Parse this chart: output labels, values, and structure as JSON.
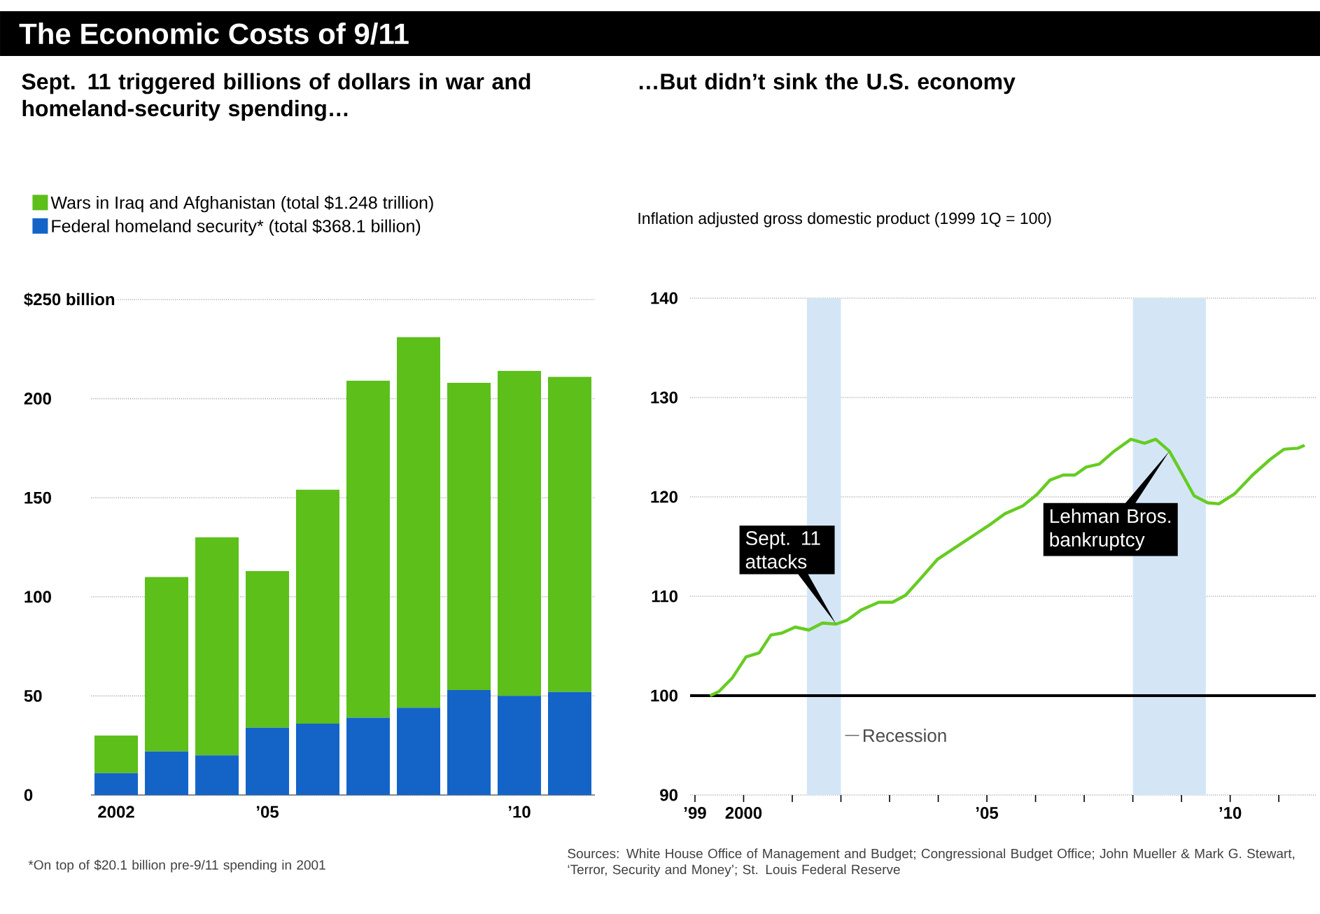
{
  "chart_data": [
    {
      "type": "bar",
      "title": "The Economic Costs of 9/11",
      "subtitle": "Sept. 11 triggered billions of dollars in war and homeland-security spending…",
      "categories": [
        "2002",
        null,
        null,
        "’05",
        null,
        null,
        null,
        null,
        "’10",
        null
      ],
      "stacked": true,
      "series": [
        {
          "name": "Federal homeland security* (total $368.1 billion)",
          "color": "#1464c8",
          "values": [
            11,
            22,
            20,
            34,
            36,
            39,
            44,
            53,
            50,
            52
          ]
        },
        {
          "name": "Wars in Iraq and Afghanistan (total $1.248 trillion)",
          "color": "#5cbf1a",
          "values": [
            19,
            88,
            110,
            79,
            118,
            170,
            187,
            155,
            164,
            159
          ]
        }
      ],
      "ylim": [
        0,
        250
      ],
      "yticks": [
        0,
        50,
        100,
        150,
        200,
        {
          "value": 250,
          "label": "$250 billion"
        }
      ],
      "grid": "y",
      "legend": "top left",
      "annotations": [
        "*On top of $20.1 billion pre-9/11 spending in 2001"
      ]
    },
    {
      "type": "line",
      "title": "…But didn’t sink the U.S. economy",
      "subtitle": "Inflation adjusted gross domestic product (1999 1Q = 100)",
      "series": [
        {
          "color": "#66cc22",
          "x": [
            1999.31,
            1999.49,
            1999.77,
            2000.05,
            2000.32,
            2000.56,
            2000.79,
            2001.06,
            2001.34,
            2001.62,
            2001.9,
            2002.13,
            2002.41,
            2002.78,
            2003.06,
            2003.33,
            2003.66,
            2003.98,
            2004.35,
            2004.72,
            2005.09,
            2005.37,
            2005.74,
            2006.02,
            2006.3,
            2006.57,
            2006.81,
            2007.04,
            2007.31,
            2007.59,
            2007.96,
            2008.24,
            2008.47,
            2008.75,
            2008.98,
            2009.26,
            2009.54,
            2009.77,
            2010.09,
            2010.46,
            2010.83,
            2011.11,
            2011.39,
            2011.53
          ],
          "values": [
            100,
            100.4,
            101.8,
            103.9,
            104.3,
            106.1,
            106.3,
            106.9,
            106.6,
            107.3,
            107.2,
            107.6,
            108.6,
            109.4,
            109.4,
            110.1,
            111.9,
            113.7,
            114.9,
            116.1,
            117.3,
            118.3,
            119.1,
            120.2,
            121.7,
            122.2,
            122.2,
            123.0,
            123.3,
            124.5,
            125.8,
            125.4,
            125.8,
            124.6,
            122.6,
            120.1,
            119.4,
            119.3,
            120.3,
            122.2,
            123.8,
            124.8,
            124.9,
            125.2
          ]
        }
      ],
      "xlim": [
        1998.9,
        2011.76
      ],
      "xticks": [
        {
          "value": 1999,
          "label": "’99"
        },
        2000,
        {
          "value": 2001,
          "label": null
        },
        {
          "value": 2002,
          "label": null
        },
        {
          "value": 2003,
          "label": null
        },
        {
          "value": 2004,
          "label": null
        },
        {
          "value": 2005,
          "label": "’05"
        },
        {
          "value": 2006,
          "label": null
        },
        {
          "value": 2007,
          "label": null
        },
        {
          "value": 2008,
          "label": null
        },
        {
          "value": 2009,
          "label": null
        },
        {
          "value": 2010,
          "label": "’10"
        },
        {
          "value": 2011,
          "label": null
        }
      ],
      "ylim": [
        90,
        140
      ],
      "yticks": [
        90,
        100,
        110,
        120,
        130,
        140
      ],
      "grid": "y",
      "ref_lines": [
        {
          "axis": "y",
          "value": 100,
          "color": "#000000"
        }
      ],
      "bands": [
        {
          "axis": "x",
          "from": 2001.3,
          "to": 2002.0,
          "label": "Recession",
          "color": "#d4e6f6"
        },
        {
          "axis": "x",
          "from": 2008.0,
          "to": 2009.5,
          "color": "#d4e6f6"
        }
      ],
      "annotations": [
        {
          "text": "Sept. 11 attacks",
          "x": 2001.9,
          "y": 107.2
        },
        {
          "text": "Lehman Bros. bankruptcy",
          "x": 2008.75,
          "y": 124.6
        },
        "Sources: White House Office of Management and Budget; Congressional Budget Office; John Mueller & Mark G. Stewart, ‘Terror, Security and Money’; St. Louis Federal Reserve"
      ]
    }
  ]
}
